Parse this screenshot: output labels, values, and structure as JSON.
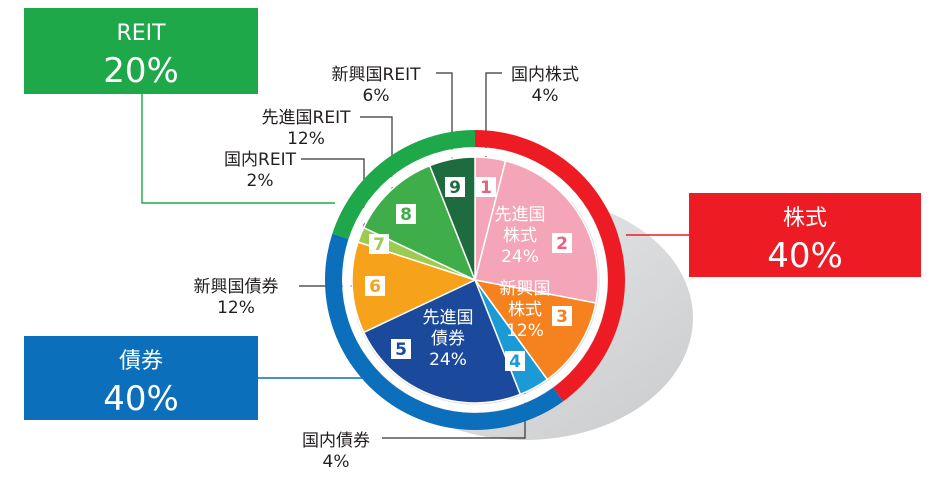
{
  "chart_data": {
    "type": "pie",
    "title": "",
    "categories": {
      "stock": {
        "name": "株式",
        "value": "40%",
        "color": "#ed1c24"
      },
      "bond": {
        "name": "債券",
        "value": "40%",
        "color": "#0b6fbb"
      },
      "reit": {
        "name": "REIT",
        "value": "20%",
        "color": "#1ea84a"
      }
    },
    "slices": [
      {
        "num": "1",
        "name": "国内株式",
        "pct": 4,
        "pct_label": "4%",
        "color": "#f4a6b8",
        "badge_color": "#e8627f",
        "group": "stock"
      },
      {
        "num": "2",
        "name": "先進国株式",
        "pct": 24,
        "pct_label": "24%",
        "color": "#f4a6b8",
        "badge_color": "#e8627f",
        "group": "stock"
      },
      {
        "num": "3",
        "name": "新興国株式",
        "pct": 12,
        "pct_label": "12%",
        "color": "#f5821f",
        "badge_color": "#f5821f",
        "group": "stock"
      },
      {
        "num": "4",
        "name": "国内債券",
        "pct": 4,
        "pct_label": "4%",
        "color": "#1c9ad6",
        "badge_color": "#1c9ad6",
        "group": "bond"
      },
      {
        "num": "5",
        "name": "先進国債券",
        "pct": 24,
        "pct_label": "24%",
        "color": "#1b4a9c",
        "badge_color": "#1b4a9c",
        "group": "bond"
      },
      {
        "num": "6",
        "name": "新興国債券",
        "pct": 12,
        "pct_label": "12%",
        "color": "#f7a21b",
        "badge_color": "#f7a21b",
        "group": "bond"
      },
      {
        "num": "7",
        "name": "国内REIT",
        "pct": 2,
        "pct_label": "2%",
        "color": "#9ccb4f",
        "badge_color": "#9ccb4f",
        "group": "reit"
      },
      {
        "num": "8",
        "name": "先進国REIT",
        "pct": 12,
        "pct_label": "12%",
        "color": "#3fae4a",
        "badge_color": "#3fae4a",
        "group": "reit"
      },
      {
        "num": "9",
        "name": "新興国REIT",
        "pct": 6,
        "pct_label": "6%",
        "color": "#1d6b3e",
        "badge_color": "#1d6b3e",
        "group": "reit"
      }
    ],
    "inner_labels": {
      "2": [
        "先進国",
        "株式"
      ],
      "3": [
        "新興国",
        "株式"
      ],
      "5": [
        "先進国",
        "債券"
      ]
    },
    "legend": "callout boxes left and right"
  }
}
